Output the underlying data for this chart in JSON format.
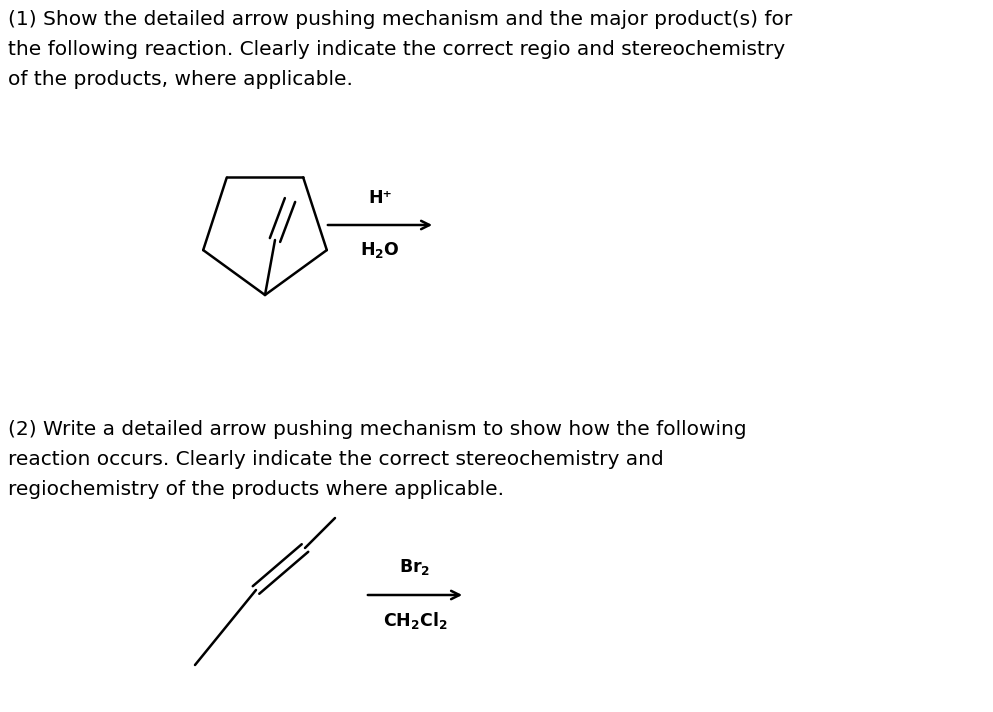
{
  "background_color": "#ffffff",
  "text1_line1": "(1) Show the detailed arrow pushing mechanism and the major product(s) for",
  "text1_line2": "the following reaction. Clearly indicate the correct regio and stereochemistry",
  "text1_line3": "of the products, where applicable.",
  "text2_line1": "(2) Write a detailed arrow pushing mechanism to show how the following",
  "text2_line2": "reaction occurs. Clearly indicate the correct stereochemistry and",
  "text2_line3": "regiochemistry of the products where applicable.",
  "rxn1_above": "H⁺",
  "rxn1_below": "H₂O",
  "rxn2_above": "Br₂",
  "rxn2_below": "CH₂Cl₂",
  "font_size_text": 14.5,
  "font_size_rxn": 12.5,
  "line_color": "#000000",
  "line_width": 1.8,
  "fig_width": 9.93,
  "fig_height": 7.12
}
